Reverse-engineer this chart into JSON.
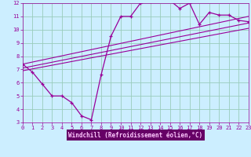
{
  "xlabel": "Windchill (Refroidissement éolien,°C)",
  "bg_color": "#cceeff",
  "axis_bg": "#cceeff",
  "bottom_bar_color": "#660066",
  "line_color": "#990099",
  "grid_color": "#99ccbb",
  "tick_color": "#990099",
  "xlabel_color": "#ffaaff",
  "xlim": [
    0,
    23
  ],
  "ylim": [
    3,
    12
  ],
  "xticks": [
    0,
    1,
    2,
    3,
    4,
    5,
    6,
    7,
    8,
    9,
    10,
    11,
    12,
    13,
    14,
    15,
    16,
    17,
    18,
    19,
    20,
    21,
    22,
    23
  ],
  "yticks": [
    3,
    4,
    5,
    6,
    7,
    8,
    9,
    10,
    11,
    12
  ],
  "curve1_x": [
    0,
    1,
    2,
    3,
    4,
    5,
    6,
    7,
    8,
    9,
    10,
    11,
    12,
    13,
    14,
    15,
    16,
    17,
    18,
    19,
    20,
    21,
    22,
    23
  ],
  "curve1_y": [
    7.4,
    6.8,
    5.9,
    5.0,
    5.0,
    4.5,
    3.5,
    3.2,
    6.6,
    9.5,
    11.0,
    11.0,
    12.0,
    12.1,
    12.2,
    12.2,
    11.6,
    12.0,
    10.4,
    11.3,
    11.1,
    11.1,
    10.7,
    10.6
  ],
  "line1_x": [
    0,
    23
  ],
  "line1_y": [
    6.9,
    10.1
  ],
  "line2_x": [
    0,
    23
  ],
  "line2_y": [
    7.1,
    10.5
  ],
  "line3_x": [
    0,
    23
  ],
  "line3_y": [
    7.4,
    11.0
  ]
}
